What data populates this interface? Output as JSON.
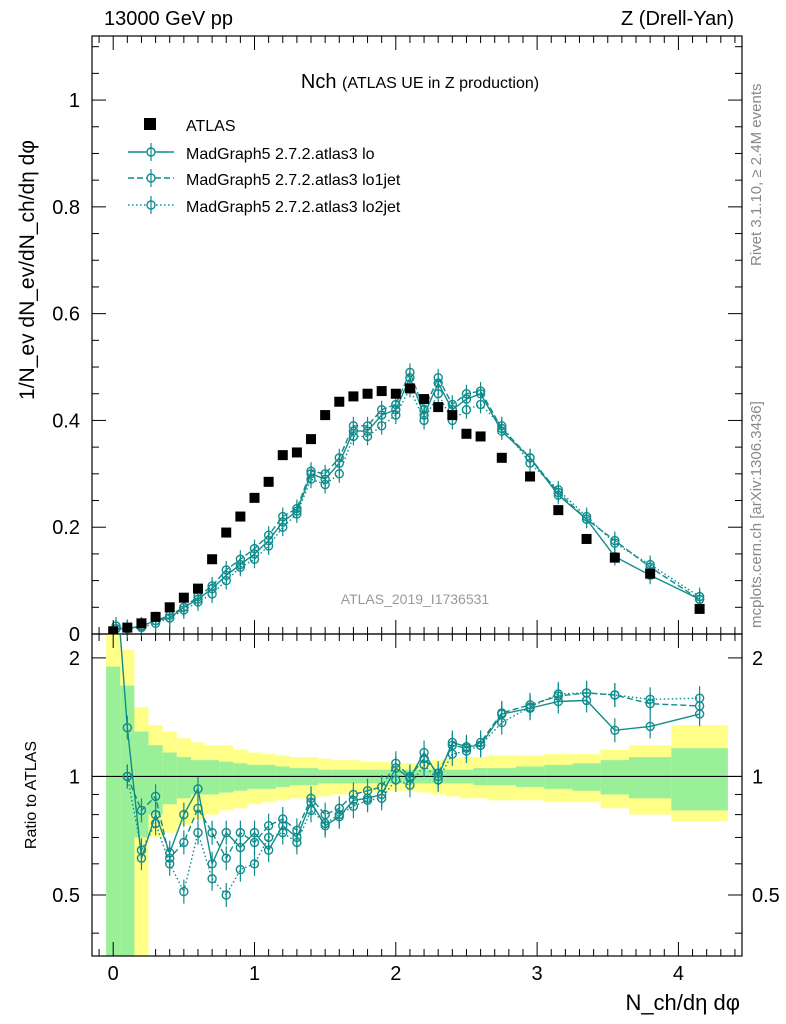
{
  "header": {
    "left": "13000 GeV pp",
    "right": "Z (Drell-Yan)"
  },
  "side_labels": {
    "rivet": "Rivet 3.1.10, ≥ 2.4M events",
    "mcplots": "mcplots.cern.ch [arXiv:1306.3436]"
  },
  "watermark": "ATLAS_2019_I1736531",
  "colors": {
    "mc": "#108c8c",
    "data": "#000000",
    "band_inner": "#99f099",
    "band_outer": "#ffff88",
    "watermark": "#999999"
  },
  "chart_data": [
    {
      "type": "scatter",
      "title": "Nch",
      "subtitle": "(ATLAS UE in Z production)",
      "ylabel": "1/N_ev dN_ev/dN_ch/dη dφ",
      "xlim": [
        -0.15,
        4.45
      ],
      "ylim": [
        0,
        1.12
      ],
      "yticks": [
        0,
        0.2,
        0.4,
        0.6,
        0.8,
        1
      ],
      "yticklabels": [
        "0",
        "0.2",
        "0.4",
        "0.6",
        "0.8",
        "1"
      ],
      "legend_position": "top-left",
      "series": [
        {
          "name": "ATLAS",
          "style": "data",
          "x": [
            0.0,
            0.1,
            0.2,
            0.3,
            0.4,
            0.5,
            0.6,
            0.7,
            0.8,
            0.9,
            1.0,
            1.1,
            1.2,
            1.3,
            1.4,
            1.5,
            1.6,
            1.7,
            1.8,
            1.9,
            2.0,
            2.1,
            2.2,
            2.3,
            2.4,
            2.5,
            2.6,
            2.75,
            2.95,
            3.15,
            3.35,
            3.55,
            3.8,
            4.15
          ],
          "y": [
            0.005,
            0.012,
            0.02,
            0.032,
            0.05,
            0.068,
            0.085,
            0.14,
            0.19,
            0.22,
            0.255,
            0.285,
            0.335,
            0.34,
            0.365,
            0.41,
            0.435,
            0.445,
            0.45,
            0.455,
            0.45,
            0.46,
            0.44,
            0.425,
            0.41,
            0.375,
            0.37,
            0.33,
            0.295,
            0.232,
            0.178,
            0.143,
            0.113,
            0.047
          ]
        },
        {
          "name": "MadGraph5 2.7.2.atlas3 lo",
          "style": "solid",
          "x": [
            0.02,
            0.1,
            0.2,
            0.3,
            0.4,
            0.5,
            0.6,
            0.7,
            0.8,
            0.9,
            1.0,
            1.1,
            1.2,
            1.3,
            1.4,
            1.5,
            1.6,
            1.7,
            1.8,
            1.9,
            2.0,
            2.1,
            2.2,
            2.3,
            2.4,
            2.5,
            2.6,
            2.75,
            2.95,
            3.15,
            3.35,
            3.55,
            3.8,
            4.15
          ],
          "y": [
            0.01,
            0.01,
            0.015,
            0.025,
            0.03,
            0.05,
            0.065,
            0.085,
            0.11,
            0.13,
            0.15,
            0.175,
            0.21,
            0.23,
            0.3,
            0.29,
            0.32,
            0.38,
            0.38,
            0.41,
            0.42,
            0.48,
            0.41,
            0.47,
            0.42,
            0.44,
            0.45,
            0.38,
            0.33,
            0.26,
            0.215,
            0.145,
            0.11,
            0.065
          ]
        },
        {
          "name": "MadGraph5 2.7.2.atlas3 lo1jet",
          "style": "dashed",
          "x": [
            0.02,
            0.1,
            0.2,
            0.3,
            0.4,
            0.5,
            0.6,
            0.7,
            0.8,
            0.9,
            1.0,
            1.1,
            1.2,
            1.3,
            1.4,
            1.5,
            1.6,
            1.7,
            1.8,
            1.9,
            2.0,
            2.1,
            2.2,
            2.3,
            2.4,
            2.5,
            2.6,
            2.75,
            2.95,
            3.15,
            3.35,
            3.55,
            3.8,
            4.15
          ],
          "y": [
            0.01,
            0.01,
            0.015,
            0.025,
            0.035,
            0.05,
            0.07,
            0.09,
            0.12,
            0.14,
            0.16,
            0.185,
            0.22,
            0.235,
            0.305,
            0.3,
            0.33,
            0.39,
            0.39,
            0.42,
            0.43,
            0.49,
            0.42,
            0.48,
            0.43,
            0.45,
            0.455,
            0.385,
            0.33,
            0.265,
            0.215,
            0.175,
            0.125,
            0.065
          ]
        },
        {
          "name": "MadGraph5 2.7.2.atlas3 lo2jet",
          "style": "dotted",
          "x": [
            0.02,
            0.1,
            0.2,
            0.3,
            0.4,
            0.5,
            0.6,
            0.7,
            0.8,
            0.9,
            1.0,
            1.1,
            1.2,
            1.3,
            1.4,
            1.5,
            1.6,
            1.7,
            1.8,
            1.9,
            2.0,
            2.1,
            2.2,
            2.3,
            2.4,
            2.5,
            2.6,
            2.75,
            2.95,
            3.15,
            3.35,
            3.55,
            3.8,
            4.15
          ],
          "y": [
            0.015,
            0.01,
            0.012,
            0.02,
            0.03,
            0.045,
            0.06,
            0.075,
            0.1,
            0.125,
            0.14,
            0.165,
            0.2,
            0.225,
            0.29,
            0.28,
            0.3,
            0.37,
            0.37,
            0.39,
            0.41,
            0.46,
            0.4,
            0.45,
            0.4,
            0.42,
            0.43,
            0.39,
            0.32,
            0.27,
            0.22,
            0.17,
            0.13,
            0.07
          ]
        }
      ]
    },
    {
      "type": "line",
      "ylabel": "Ratio to ATLAS",
      "xlabel": "N_ch/dη dφ",
      "xlim": [
        -0.15,
        4.45
      ],
      "ylim": [
        0.35,
        2.3
      ],
      "yticks": [
        0.5,
        1,
        2
      ],
      "yticklabels": [
        "0.5",
        "1",
        "2"
      ],
      "xticks": [
        0,
        1,
        2,
        3,
        4
      ],
      "xticklabels": [
        "0",
        "1",
        "2",
        "3",
        "4"
      ],
      "bands": {
        "edges": [
          -0.05,
          0.05,
          0.15,
          0.25,
          0.35,
          0.45,
          0.55,
          0.65,
          0.75,
          0.85,
          0.95,
          1.05,
          1.15,
          1.25,
          1.35,
          1.45,
          1.55,
          1.65,
          1.75,
          1.85,
          1.95,
          2.05,
          2.15,
          2.25,
          2.35,
          2.45,
          2.55,
          2.65,
          2.85,
          3.05,
          3.25,
          3.45,
          3.65,
          3.95,
          4.35
        ],
        "inner": [
          [
            0.35,
            1.9
          ],
          [
            0.35,
            1.7
          ],
          [
            0.7,
            1.3
          ],
          [
            0.8,
            1.2
          ],
          [
            0.85,
            1.15
          ],
          [
            0.88,
            1.12
          ],
          [
            0.9,
            1.1
          ],
          [
            0.9,
            1.1
          ],
          [
            0.91,
            1.09
          ],
          [
            0.92,
            1.08
          ],
          [
            0.93,
            1.07
          ],
          [
            0.93,
            1.07
          ],
          [
            0.94,
            1.06
          ],
          [
            0.95,
            1.05
          ],
          [
            0.95,
            1.05
          ],
          [
            0.96,
            1.04
          ],
          [
            0.96,
            1.04
          ],
          [
            0.96,
            1.04
          ],
          [
            0.96,
            1.04
          ],
          [
            0.96,
            1.04
          ],
          [
            0.96,
            1.04
          ],
          [
            0.96,
            1.04
          ],
          [
            0.96,
            1.04
          ],
          [
            0.96,
            1.04
          ],
          [
            0.96,
            1.04
          ],
          [
            0.96,
            1.04
          ],
          [
            0.95,
            1.05
          ],
          [
            0.95,
            1.05
          ],
          [
            0.94,
            1.06
          ],
          [
            0.93,
            1.07
          ],
          [
            0.92,
            1.08
          ],
          [
            0.9,
            1.1
          ],
          [
            0.88,
            1.12
          ],
          [
            0.82,
            1.18
          ]
        ],
        "outer": [
          [
            0.35,
            2.3
          ],
          [
            0.35,
            2.1
          ],
          [
            0.35,
            1.5
          ],
          [
            0.7,
            1.35
          ],
          [
            0.72,
            1.3
          ],
          [
            0.75,
            1.25
          ],
          [
            0.78,
            1.22
          ],
          [
            0.8,
            1.2
          ],
          [
            0.82,
            1.2
          ],
          [
            0.83,
            1.17
          ],
          [
            0.85,
            1.15
          ],
          [
            0.86,
            1.14
          ],
          [
            0.87,
            1.13
          ],
          [
            0.88,
            1.12
          ],
          [
            0.88,
            1.12
          ],
          [
            0.89,
            1.11
          ],
          [
            0.9,
            1.1
          ],
          [
            0.9,
            1.1
          ],
          [
            0.91,
            1.09
          ],
          [
            0.91,
            1.09
          ],
          [
            0.92,
            1.08
          ],
          [
            0.92,
            1.08
          ],
          [
            0.91,
            1.09
          ],
          [
            0.9,
            1.1
          ],
          [
            0.89,
            1.11
          ],
          [
            0.88,
            1.12
          ],
          [
            0.88,
            1.12
          ],
          [
            0.87,
            1.13
          ],
          [
            0.87,
            1.13
          ],
          [
            0.86,
            1.14
          ],
          [
            0.86,
            1.14
          ],
          [
            0.83,
            1.17
          ],
          [
            0.8,
            1.2
          ],
          [
            0.77,
            1.35
          ]
        ]
      },
      "series": [
        {
          "name": "MadGraph5 2.7.2.atlas3 lo",
          "style": "solid",
          "x": [
            0.1,
            0.2,
            0.3,
            0.4,
            0.5,
            0.6,
            0.7,
            0.8,
            0.9,
            1.0,
            1.1,
            1.2,
            1.3,
            1.4,
            1.5,
            1.6,
            1.7,
            1.8,
            1.9,
            2.0,
            2.1,
            2.2,
            2.3,
            2.4,
            2.5,
            2.6,
            2.75,
            2.95,
            3.15,
            3.35,
            3.55,
            3.8,
            4.15
          ],
          "y": [
            1.33,
            0.62,
            0.8,
            0.64,
            0.8,
            0.93,
            0.6,
            0.72,
            0.66,
            0.72,
            0.65,
            0.75,
            0.7,
            0.86,
            0.75,
            0.79,
            0.87,
            0.88,
            0.9,
            1.05,
            0.99,
            1.15,
            1.0,
            1.22,
            1.19,
            1.2,
            1.44,
            1.49,
            1.55,
            1.56,
            1.31,
            1.34,
            1.44
          ]
        },
        {
          "name": "MadGraph5 2.7.2.atlas3 lo1jet",
          "style": "dashed",
          "x": [
            0.1,
            0.2,
            0.3,
            0.4,
            0.5,
            0.6,
            0.7,
            0.8,
            0.9,
            1.0,
            1.1,
            1.2,
            1.3,
            1.4,
            1.5,
            1.6,
            1.7,
            1.8,
            1.9,
            2.0,
            2.1,
            2.2,
            2.3,
            2.4,
            2.5,
            2.6,
            2.75,
            2.95,
            3.15,
            3.35,
            3.55,
            3.8,
            4.15
          ],
          "y": [
            1.0,
            0.82,
            0.89,
            0.62,
            0.68,
            0.83,
            0.72,
            0.62,
            0.72,
            0.68,
            0.75,
            0.78,
            0.73,
            0.88,
            0.8,
            0.83,
            0.9,
            0.92,
            0.94,
            1.08,
            1.0,
            1.11,
            1.02,
            1.2,
            1.18,
            1.22,
            1.45,
            1.52,
            1.6,
            1.63,
            1.61,
            1.53,
            1.51
          ]
        },
        {
          "name": "MadGraph5 2.7.2.atlas3 lo2jet",
          "style": "dotted",
          "x": [
            0.1,
            0.2,
            0.3,
            0.4,
            0.5,
            0.6,
            0.7,
            0.8,
            0.9,
            1.0,
            1.1,
            1.2,
            1.3,
            1.4,
            1.5,
            1.6,
            1.7,
            1.8,
            1.9,
            2.0,
            2.1,
            2.2,
            2.3,
            2.4,
            2.5,
            2.6,
            2.75,
            2.95,
            3.15,
            3.35,
            3.55,
            3.8,
            4.15
          ],
          "y": [
            1.0,
            0.65,
            0.76,
            0.6,
            0.51,
            0.72,
            0.55,
            0.5,
            0.58,
            0.6,
            0.7,
            0.72,
            0.68,
            0.82,
            0.76,
            0.8,
            0.84,
            0.87,
            0.88,
            0.98,
            0.95,
            1.07,
            0.98,
            1.14,
            1.16,
            1.2,
            1.37,
            1.5,
            1.62,
            1.63,
            1.61,
            1.57,
            1.58
          ]
        }
      ]
    }
  ]
}
